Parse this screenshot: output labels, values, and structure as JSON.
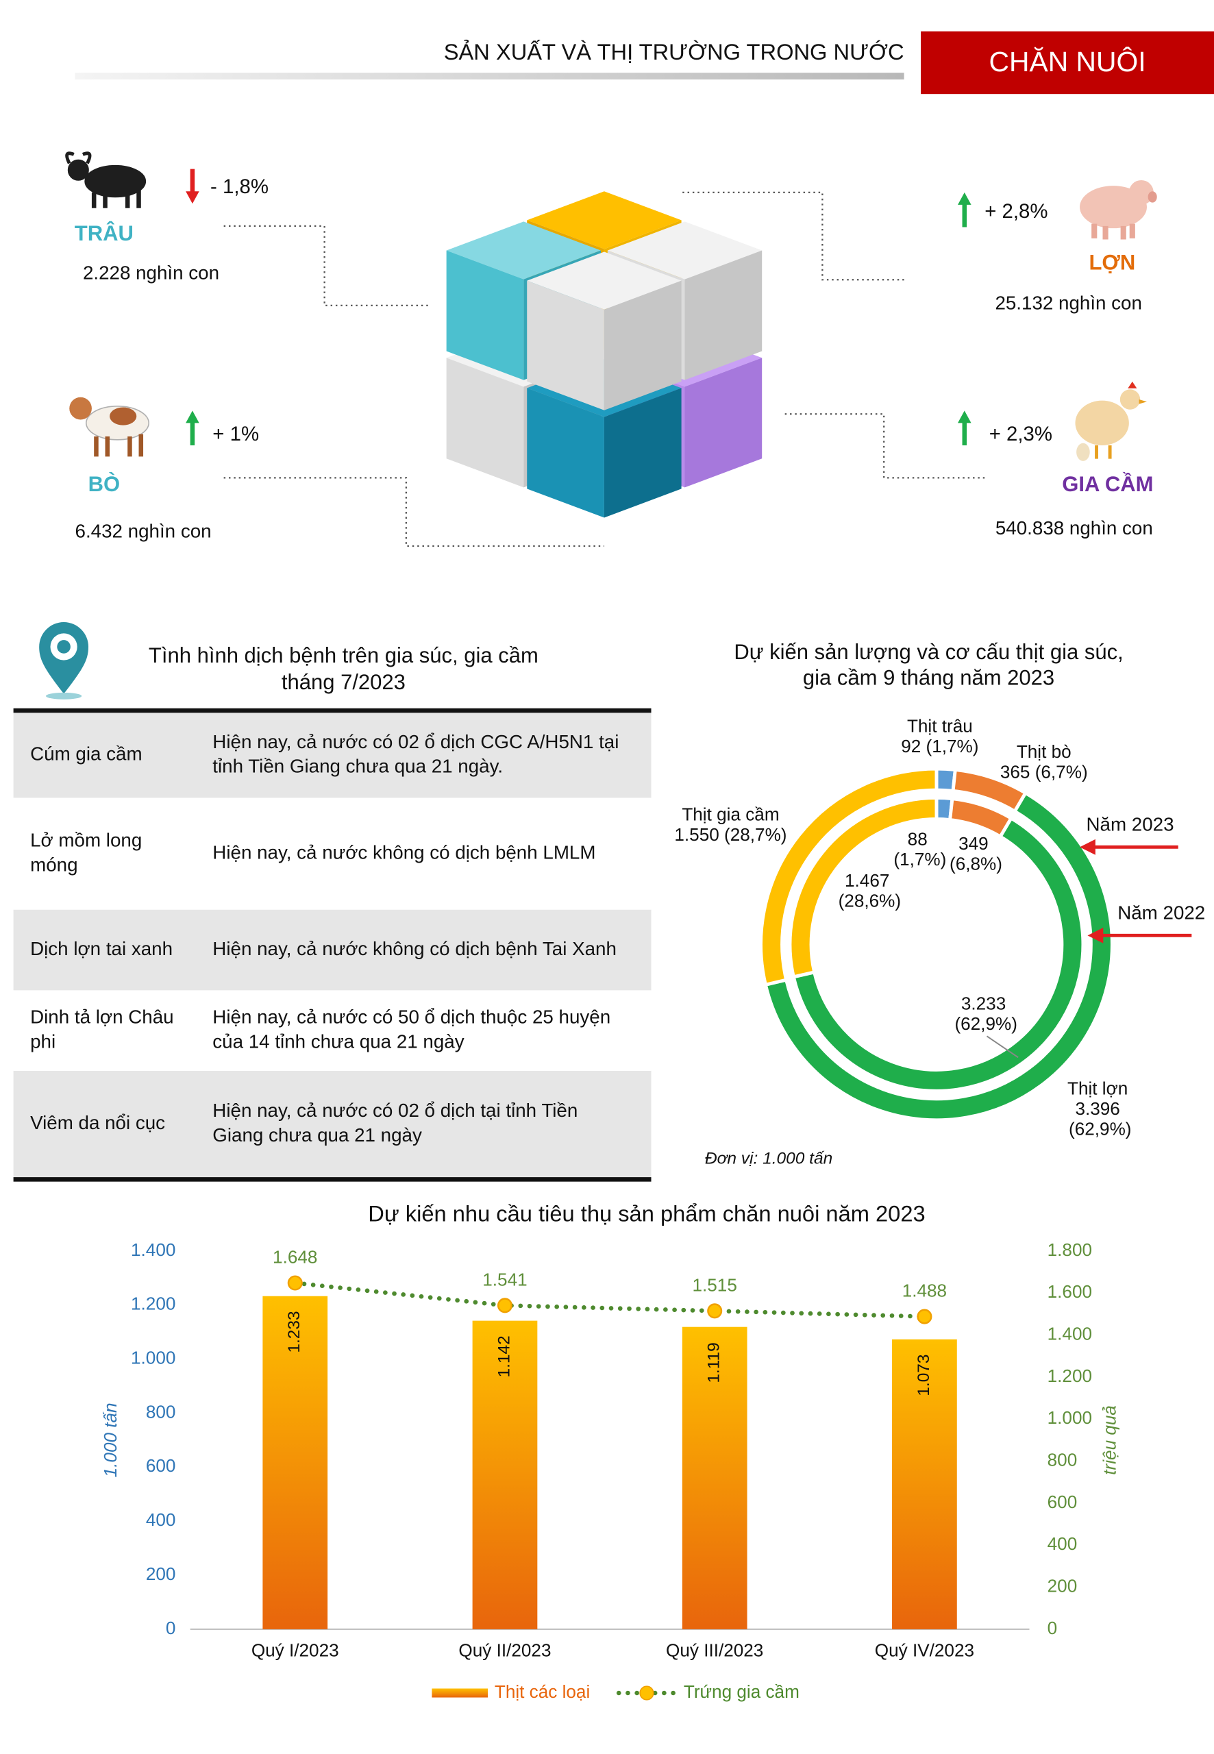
{
  "header": {
    "title": "SẢN XUẤT VÀ THỊ TRƯỜNG TRONG NƯỚC",
    "section": "CHĂN NUÔI"
  },
  "livestock": [
    {
      "name": "TRÂU",
      "color": "#3fb2c4",
      "change": "- 1,8%",
      "trend": "down",
      "count": "2.228 nghìn con"
    },
    {
      "name": "LỢN",
      "color": "#e36c09",
      "change": "+ 2,8%",
      "trend": "up",
      "count": "25.132 nghìn con"
    },
    {
      "name": "BÒ",
      "color": "#3fb2c4",
      "change": "+ 1%",
      "trend": "up",
      "count": "6.432 nghìn con"
    },
    {
      "name": "GIA CẦM",
      "color": "#7030a0",
      "change": "+ 2,3%",
      "trend": "up",
      "count": "540.838 nghìn con"
    }
  ],
  "disease": {
    "title": [
      "Tình hình dịch bệnh trên gia súc, gia cầm",
      "tháng 7/2023"
    ],
    "rows": [
      {
        "name": [
          "Cúm gia cầm"
        ],
        "status": [
          "Hiện nay, cả nước có 02 ổ dịch CGC A/H5N1 tại",
          "tỉnh Tiền Giang chưa qua 21 ngày."
        ]
      },
      {
        "name": [
          "Lở mồm long",
          "móng"
        ],
        "status": [
          "Hiện nay, cả nước không có dịch bệnh LMLM"
        ]
      },
      {
        "name": [
          "Dịch lợn tai xanh"
        ],
        "status": [
          "Hiện nay, cả nước không có dịch bệnh Tai Xanh"
        ]
      },
      {
        "name": [
          "Dinh tả lợn Châu",
          "phi"
        ],
        "status": [
          "Hiện nay, cả nước có 50 ổ dịch thuộc 25 huyện",
          "của 14 tỉnh chưa qua 21 ngày"
        ]
      },
      {
        "name": [
          "Viêm da nổi cục"
        ],
        "status": [
          "Hiện nay, cả nước có 02 ổ dịch tại tỉnh Tiền",
          "Giang chưa qua 21 ngày"
        ]
      }
    ]
  },
  "chart_data": [
    {
      "type": "pie",
      "title": [
        "Dự kiến sản lượng và cơ cấu thịt gia súc,",
        "gia cầm 9 tháng năm 2023"
      ],
      "categories": [
        "Thịt trâu",
        "Thịt bò",
        "Thịt lợn",
        "Thịt gia cầm"
      ],
      "colors": [
        "#5b9bd5",
        "#ed7d31",
        "#1fae4b",
        "#ffc000"
      ],
      "series": [
        {
          "name": "Năm 2023",
          "values": [
            92,
            365,
            3396,
            1550
          ],
          "value_labels": [
            "92 (1,7%)",
            "365 (6,7%)",
            "3.396 (62,9%)",
            "1.550 (28,7%)"
          ]
        },
        {
          "name": "Năm 2022",
          "values": [
            88,
            349,
            3233,
            1467
          ],
          "value_labels": [
            "88 (1,7%)",
            "349 (6,8%)",
            "3.233 (62,9%)",
            "1.467 (28,6%)"
          ]
        }
      ],
      "note": "Đơn vị: 1.000 tấn"
    },
    {
      "type": "bar",
      "title": "Dự kiến nhu cầu tiêu thụ sản phẩm chăn nuôi năm 2023",
      "categories": [
        "Quý I/2023",
        "Quý II/2023",
        "Quý III/2023",
        "Quý IV/2023"
      ],
      "series": [
        {
          "name": "Thịt các loại",
          "type": "bar",
          "color": "#f5a300",
          "values": [
            1233,
            1142,
            1119,
            1073
          ],
          "value_labels": [
            "1.233",
            "1.142",
            "1.119",
            "1.073"
          ]
        },
        {
          "name": "Trứng gia cầm",
          "type": "line",
          "axis": "y2",
          "color": "#4e8a2e",
          "values": [
            1648,
            1541,
            1515,
            1488
          ],
          "value_labels": [
            "1.648",
            "1.541",
            "1.515",
            "1.488"
          ]
        }
      ],
      "ylabel": "1.000 tấn",
      "y2label": "triệu quả",
      "ylim": [
        0,
        1400
      ],
      "yticks": [
        0,
        200,
        400,
        600,
        800,
        {
          "value": 1000,
          "label": "1.000"
        },
        {
          "value": 1200,
          "label": "1.200"
        },
        {
          "value": 1400,
          "label": "1.400"
        }
      ],
      "y2lim": [
        0,
        1800
      ],
      "y2ticks": [
        0,
        200,
        400,
        600,
        800,
        {
          "value": 1000,
          "label": "1.000"
        },
        {
          "value": 1200,
          "label": "1.200"
        },
        {
          "value": 1400,
          "label": "1.400"
        },
        {
          "value": 1600,
          "label": "1.600"
        },
        {
          "value": 1800,
          "label": "1.800"
        }
      ],
      "grid": false
    }
  ]
}
